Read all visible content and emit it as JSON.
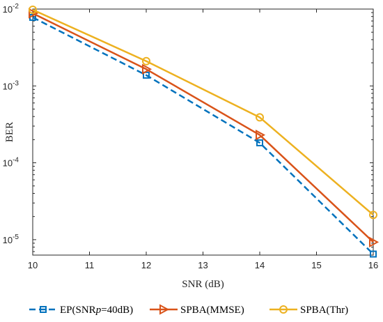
{
  "chart_data": {
    "type": "line",
    "xlabel": "SNR (dB)",
    "ylabel": "BER",
    "xlim": [
      10,
      16
    ],
    "ylim": [
      6.3e-06,
      0.01
    ],
    "yscale": "log",
    "grid": false,
    "legend_position": "bottom",
    "x_ticks": [
      10,
      11,
      12,
      13,
      14,
      15,
      16
    ],
    "y_ticks": [
      {
        "base": "10",
        "exp": "-5",
        "value": 1e-05
      },
      {
        "base": "10",
        "exp": "-4",
        "value": 0.0001
      },
      {
        "base": "10",
        "exp": "-3",
        "value": 0.001
      },
      {
        "base": "10",
        "exp": "-2",
        "value": 0.01
      }
    ],
    "series": [
      {
        "name_parts": [
          "EP(SNR",
          "p",
          "=40dB)"
        ],
        "color": "#0072BD",
        "line_style": "dashed",
        "marker": "square",
        "x": [
          10,
          12,
          14,
          16
        ],
        "y": [
          0.0078,
          0.00138,
          0.000182,
          6.5e-06
        ]
      },
      {
        "name_parts": [
          "SPBA(MMSE)"
        ],
        "color": "#D95319",
        "line_style": "solid",
        "marker": "triangle-right",
        "x": [
          10,
          12,
          14,
          16
        ],
        "y": [
          0.0088,
          0.00165,
          0.00023,
          9.3e-06
        ]
      },
      {
        "name_parts": [
          "SPBA(Thr)"
        ],
        "color": "#EDB120",
        "line_style": "solid",
        "marker": "circle",
        "x": [
          10,
          12,
          14,
          16
        ],
        "y": [
          0.0098,
          0.0021,
          0.00039,
          2.1e-05
        ]
      }
    ]
  }
}
